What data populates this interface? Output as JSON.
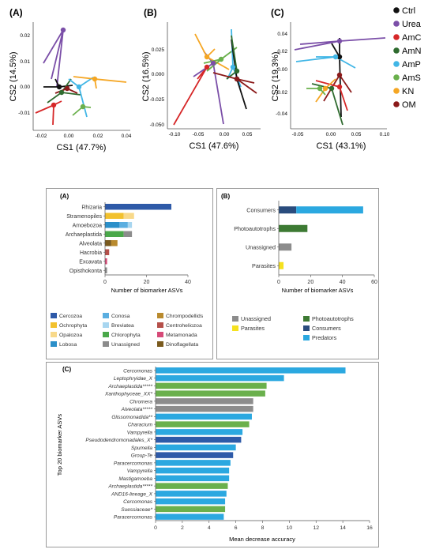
{
  "pcoa": {
    "panels": [
      {
        "label": "(A)",
        "xlabel": "CS1 (47.7%)",
        "ylabel": "CS2 (14.5%)",
        "xticks": [
          "-0.02",
          "0.00",
          "0.02",
          "0.04"
        ],
        "yticks": [
          "0.02",
          "0.01",
          "0.00",
          "-0.01"
        ]
      },
      {
        "label": "(B)",
        "xlabel": "CS1 (47.6%)",
        "ylabel": "CS2 (16.5%)",
        "xticks": [
          "-0.10",
          "-0.05",
          "0.00",
          "0.05"
        ],
        "yticks": [
          "0.025",
          "0.000",
          "-0.025",
          "-0.050"
        ]
      },
      {
        "label": "(C)",
        "xlabel": "CS1 (43.1%)",
        "ylabel": "CS2 (19.3%)",
        "xticks": [
          "-0.05",
          "0.00",
          "0.05",
          "0.10"
        ],
        "yticks": [
          "0.04",
          "0.02",
          "0.00",
          "-0.02",
          "-0.04"
        ]
      }
    ],
    "legend": [
      {
        "name": "Ctrl",
        "color": "#111111"
      },
      {
        "name": "Urea",
        "color": "#7b4fa8"
      },
      {
        "name": "AmC",
        "color": "#d62728"
      },
      {
        "name": "AmN",
        "color": "#2f6b2f"
      },
      {
        "name": "AmP",
        "color": "#41b6e6"
      },
      {
        "name": "AmS",
        "color": "#6ab04c"
      },
      {
        "name": "KN",
        "color": "#f5a623"
      },
      {
        "name": "OM",
        "color": "#8b1a1a"
      }
    ]
  },
  "chart_data": [
    {
      "type": "bar",
      "label": "(A)",
      "orientation": "horizontal",
      "stacked": true,
      "categories": [
        "Rhizaria",
        "Stramenopiles",
        "Amoebozoa",
        "Archaeplastida",
        "Alveolata",
        "Hacrobia",
        "Excavata",
        "Opisthokonta"
      ],
      "xlabel": "Number of biomarker ASVs",
      "xlim": [
        0,
        40
      ],
      "xticks": [
        "0",
        "20",
        "40"
      ],
      "segments": [
        {
          "category": "Rhizaria",
          "group": "Cercozoa",
          "value": 32
        },
        {
          "category": "Stramenopiles",
          "group": "Ochrophyta",
          "value": 9
        },
        {
          "category": "Stramenopiles",
          "group": "Opalozoa",
          "value": 5
        },
        {
          "category": "Amoebozoa",
          "group": "Lobosa",
          "value": 7
        },
        {
          "category": "Amoebozoa",
          "group": "Conosa",
          "value": 4
        },
        {
          "category": "Amoebozoa",
          "group": "Breviatea",
          "value": 2
        },
        {
          "category": "Archaeplastida",
          "group": "Chlorophyta",
          "value": 9
        },
        {
          "category": "Archaeplastida",
          "group": "Unassigned",
          "value": 4
        },
        {
          "category": "Alveolata",
          "group": "Dinoflagellata",
          "value": 3
        },
        {
          "category": "Alveolata",
          "group": "Chrompodellids",
          "value": 3
        },
        {
          "category": "Hacrobia",
          "group": "Centroheliozoa",
          "value": 2
        },
        {
          "category": "Excavata",
          "group": "Metamonada",
          "value": 1
        },
        {
          "category": "Opisthokonta",
          "group": "Unassigned",
          "value": 1
        }
      ],
      "legend": [
        {
          "name": "Cercozoa",
          "color": "#2e5aa8"
        },
        {
          "name": "Ochrophyta",
          "color": "#f2c12e"
        },
        {
          "name": "Opalozoa",
          "color": "#f8d98a"
        },
        {
          "name": "Lobosa",
          "color": "#2b8fc9"
        },
        {
          "name": "Conosa",
          "color": "#5aaee0"
        },
        {
          "name": "Breviatea",
          "color": "#a8d6f0"
        },
        {
          "name": "Chrompodellids",
          "color": "#b98a2e"
        },
        {
          "name": "Centroheliozoa",
          "color": "#b5504a"
        },
        {
          "name": "Metamonada",
          "color": "#d64a78"
        },
        {
          "name": "Chlorophyta",
          "color": "#4aa84a"
        },
        {
          "name": "Dinoflagellata",
          "color": "#7a5a1e"
        },
        {
          "name": "Unassigned",
          "color": "#8c8c8c"
        }
      ]
    },
    {
      "type": "bar",
      "label": "(B)",
      "orientation": "horizontal",
      "stacked": true,
      "categories": [
        "Consumers",
        "Photoautotrophs",
        "Unassigned",
        "Parasites"
      ],
      "xlabel": "Number of biomarker ASVs",
      "xlim": [
        0,
        60
      ],
      "xticks": [
        "0",
        "20",
        "40",
        "60"
      ],
      "segments": [
        {
          "category": "Consumers",
          "group": "Consumers",
          "value": 11
        },
        {
          "category": "Consumers",
          "group": "Predators",
          "value": 42
        },
        {
          "category": "Photoautotrophs",
          "group": "Photoautotrophs",
          "value": 18
        },
        {
          "category": "Unassigned",
          "group": "Unassigned",
          "value": 8
        },
        {
          "category": "Parasites",
          "group": "Parasites",
          "value": 3
        }
      ],
      "legend": [
        {
          "name": "Unassigned",
          "color": "#8c8c8c"
        },
        {
          "name": "Photoautotrophs",
          "color": "#3d7a33"
        },
        {
          "name": "Parasites",
          "color": "#f5e11f"
        },
        {
          "name": "Consumers",
          "color": "#2a4c7d"
        },
        {
          "name": "Predators",
          "color": "#2ba8e0"
        }
      ]
    },
    {
      "type": "bar",
      "label": "(C)",
      "orientation": "horizontal",
      "ylabel": "Top 20 biomarker ASVs",
      "xlabel": "Mean decrease accuracy",
      "xlim": [
        0,
        16
      ],
      "xticks": [
        "0",
        "2",
        "4",
        "6",
        "8",
        "10",
        "12",
        "14",
        "16"
      ],
      "categories": [
        "Cercomonas",
        "Leptophryidae_X",
        "Archaeplastida*****",
        "Xanthophyceae_XX*",
        "Chromera",
        "Alveolata*****",
        "Glissomonadida**",
        "Characium",
        "Vampyrella",
        "Pseudodendromonadales_X*",
        "Spumella",
        "Group-Te",
        "Paracercomonas",
        "Vampyrella",
        "Mastigamoeba",
        "Archaeplastida*****",
        "AND16-lineage_X",
        "Cercomonas",
        "Suessiaceae*",
        "Paracercomonas"
      ],
      "values": [
        14.2,
        9.6,
        8.3,
        8.2,
        7.3,
        7.3,
        7.2,
        7.0,
        6.5,
        6.4,
        6.0,
        5.8,
        5.6,
        5.5,
        5.5,
        5.4,
        5.3,
        5.2,
        5.2,
        5.1
      ],
      "colors": [
        "#2ba8e0",
        "#2ba8e0",
        "#6ab04c",
        "#6ab04c",
        "#8c8c8c",
        "#8c8c8c",
        "#2ba8e0",
        "#6ab04c",
        "#2ba8e0",
        "#2e5aa8",
        "#2ba8e0",
        "#2e5aa8",
        "#2ba8e0",
        "#2ba8e0",
        "#2ba8e0",
        "#6ab04c",
        "#2ba8e0",
        "#2ba8e0",
        "#6ab04c",
        "#2ba8e0"
      ]
    }
  ]
}
